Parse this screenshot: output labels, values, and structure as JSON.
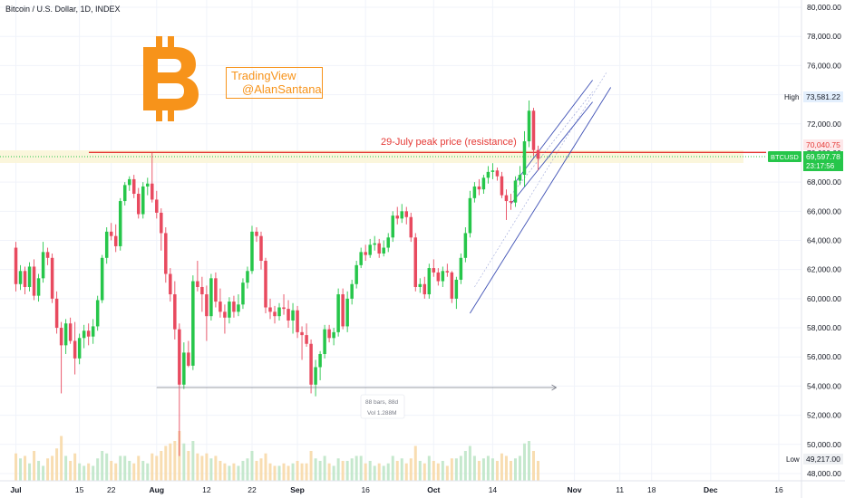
{
  "header": {
    "title": "Bitcoin / U.S. Dollar, 1D, INDEX"
  },
  "watermark": {
    "line1": "TradingView",
    "line2": "@AlanSantana"
  },
  "logo": {
    "icon": "bitcoin-logo-icon",
    "color": "#f7931a"
  },
  "annotations": {
    "resistance_label": "29-July peak price (resistance)",
    "resistance_color": "#e53935",
    "range_bars": "88 bars, 88d",
    "range_vol": "Vol 1.288M"
  },
  "price_scale": {
    "high_label": "High",
    "high_value": "73,581.22",
    "low_label": "Low",
    "low_value": "49,217.00",
    "resistance_value": "70,040.75",
    "symbol": "BTCUSD",
    "last_value": "69,597.78",
    "countdown": "23:17:56"
  },
  "colors": {
    "up": "#22ab94",
    "up_bright": "#26c64a",
    "down": "#e84a5f",
    "channel": "#3f51b5",
    "volume": "#f5d98f"
  },
  "chart_data": {
    "type": "candlestick",
    "title": "Bitcoin / U.S. Dollar, 1D, INDEX",
    "ylim": [
      47500,
      80500
    ],
    "y_ticks": [
      "48,000.00",
      "50,000.00",
      "52,000.00",
      "54,000.00",
      "56,000.00",
      "58,000.00",
      "60,000.00",
      "62,000.00",
      "64,000.00",
      "66,000.00",
      "68,000.00",
      "70,000.00",
      "72,000.00",
      "74,000.00",
      "76,000.00",
      "78,000.00",
      "80,000.00"
    ],
    "x_ticks": [
      {
        "label": "Jul",
        "day": 0
      },
      {
        "label": "15",
        "day": 14
      },
      {
        "label": "22",
        "day": 21
      },
      {
        "label": "Aug",
        "day": 31
      },
      {
        "label": "12",
        "day": 42
      },
      {
        "label": "22",
        "day": 52
      },
      {
        "label": "Sep",
        "day": 62
      },
      {
        "label": "16",
        "day": 77
      },
      {
        "label": "Oct",
        "day": 92
      },
      {
        "label": "14",
        "day": 105
      },
      {
        "label": "Nov",
        "day": 123
      },
      {
        "label": "11",
        "day": 133
      },
      {
        "label": "18",
        "day": 140
      },
      {
        "label": "Dec",
        "day": 153
      },
      {
        "label": "16",
        "day": 168
      }
    ],
    "x_domain": [
      -3.5,
      173
    ],
    "resistance": 70040.75,
    "channel_lines": [
      {
        "x1": 110,
        "y1": 68000,
        "x2": 127,
        "y2": 75000
      },
      {
        "x1": 109,
        "y1": 66500,
        "x2": 127,
        "y2": 73500
      },
      {
        "x1": 100,
        "y1": 59000,
        "x2": 131,
        "y2": 74500
      }
    ],
    "range_measure": {
      "x1": 31,
      "x2": 119,
      "y": 53900
    },
    "candles": [
      {
        "o": 63500,
        "h": 63900,
        "l": 60500,
        "c": 61000
      },
      {
        "o": 61000,
        "h": 62300,
        "l": 60600,
        "c": 61900
      },
      {
        "o": 61900,
        "h": 62200,
        "l": 60300,
        "c": 60800
      },
      {
        "o": 60800,
        "h": 62500,
        "l": 60500,
        "c": 62200
      },
      {
        "o": 62200,
        "h": 62700,
        "l": 59900,
        "c": 60200
      },
      {
        "o": 60200,
        "h": 61700,
        "l": 59800,
        "c": 61400
      },
      {
        "o": 61400,
        "h": 63900,
        "l": 61100,
        "c": 63200
      },
      {
        "o": 63200,
        "h": 63500,
        "l": 62300,
        "c": 62800
      },
      {
        "o": 62800,
        "h": 63100,
        "l": 59700,
        "c": 60000
      },
      {
        "o": 60000,
        "h": 60500,
        "l": 57600,
        "c": 58000
      },
      {
        "o": 58000,
        "h": 58400,
        "l": 53500,
        "c": 56800
      },
      {
        "o": 56800,
        "h": 58600,
        "l": 56200,
        "c": 58300
      },
      {
        "o": 58300,
        "h": 58700,
        "l": 56900,
        "c": 57100
      },
      {
        "o": 57100,
        "h": 58400,
        "l": 54800,
        "c": 55900
      },
      {
        "o": 55900,
        "h": 57600,
        "l": 55500,
        "c": 57300
      },
      {
        "o": 57300,
        "h": 58200,
        "l": 56600,
        "c": 57800
      },
      {
        "o": 57800,
        "h": 58300,
        "l": 56800,
        "c": 57400
      },
      {
        "o": 57400,
        "h": 58600,
        "l": 56900,
        "c": 58100
      },
      {
        "o": 58100,
        "h": 60200,
        "l": 57800,
        "c": 59900
      },
      {
        "o": 59900,
        "h": 63000,
        "l": 59700,
        "c": 62800
      },
      {
        "o": 62800,
        "h": 64900,
        "l": 62400,
        "c": 64600
      },
      {
        "o": 64600,
        "h": 65200,
        "l": 64000,
        "c": 64300
      },
      {
        "o": 64300,
        "h": 65100,
        "l": 63200,
        "c": 63600
      },
      {
        "o": 63600,
        "h": 66900,
        "l": 63300,
        "c": 66700
      },
      {
        "o": 66700,
        "h": 68000,
        "l": 66400,
        "c": 67800
      },
      {
        "o": 67800,
        "h": 68400,
        "l": 67400,
        "c": 68200
      },
      {
        "o": 68200,
        "h": 68500,
        "l": 66900,
        "c": 67200
      },
      {
        "o": 67200,
        "h": 67600,
        "l": 65500,
        "c": 65800
      },
      {
        "o": 65800,
        "h": 68000,
        "l": 65500,
        "c": 67700
      },
      {
        "o": 67700,
        "h": 68300,
        "l": 67100,
        "c": 67900
      },
      {
        "o": 67900,
        "h": 70000,
        "l": 66600,
        "c": 66800
      },
      {
        "o": 66800,
        "h": 67400,
        "l": 65500,
        "c": 65900
      },
      {
        "o": 65900,
        "h": 66200,
        "l": 63300,
        "c": 64500
      },
      {
        "o": 64500,
        "h": 64900,
        "l": 61100,
        "c": 61700
      },
      {
        "o": 61700,
        "h": 62100,
        "l": 59800,
        "c": 60300
      },
      {
        "o": 60300,
        "h": 61200,
        "l": 57200,
        "c": 57900
      },
      {
        "o": 57900,
        "h": 58300,
        "l": 49200,
        "c": 54100
      },
      {
        "o": 54100,
        "h": 57000,
        "l": 53800,
        "c": 56300
      },
      {
        "o": 56300,
        "h": 57100,
        "l": 55300,
        "c": 55400
      },
      {
        "o": 55400,
        "h": 61600,
        "l": 55100,
        "c": 61200
      },
      {
        "o": 61200,
        "h": 62600,
        "l": 60500,
        "c": 60800
      },
      {
        "o": 60800,
        "h": 61500,
        "l": 59100,
        "c": 60300
      },
      {
        "o": 60300,
        "h": 60900,
        "l": 57100,
        "c": 58800
      },
      {
        "o": 58800,
        "h": 61700,
        "l": 58500,
        "c": 61400
      },
      {
        "o": 61400,
        "h": 61800,
        "l": 59400,
        "c": 59800
      },
      {
        "o": 59800,
        "h": 60700,
        "l": 58700,
        "c": 59100
      },
      {
        "o": 59100,
        "h": 59600,
        "l": 57600,
        "c": 58700
      },
      {
        "o": 58700,
        "h": 60100,
        "l": 58300,
        "c": 59800
      },
      {
        "o": 59800,
        "h": 60200,
        "l": 58700,
        "c": 59100
      },
      {
        "o": 59100,
        "h": 60300,
        "l": 58800,
        "c": 59600
      },
      {
        "o": 59600,
        "h": 61400,
        "l": 59300,
        "c": 61100
      },
      {
        "o": 61100,
        "h": 62200,
        "l": 60700,
        "c": 61900
      },
      {
        "o": 61900,
        "h": 65000,
        "l": 61700,
        "c": 64600
      },
      {
        "o": 64600,
        "h": 64900,
        "l": 63900,
        "c": 64300
      },
      {
        "o": 64300,
        "h": 64600,
        "l": 62000,
        "c": 62600
      },
      {
        "o": 62600,
        "h": 62800,
        "l": 59000,
        "c": 59400
      },
      {
        "o": 59400,
        "h": 60000,
        "l": 58600,
        "c": 59100
      },
      {
        "o": 59100,
        "h": 59500,
        "l": 58300,
        "c": 58800
      },
      {
        "o": 58800,
        "h": 59700,
        "l": 58500,
        "c": 59400
      },
      {
        "o": 59400,
        "h": 60300,
        "l": 58900,
        "c": 59300
      },
      {
        "o": 59300,
        "h": 59900,
        "l": 58000,
        "c": 58500
      },
      {
        "o": 58500,
        "h": 59700,
        "l": 57600,
        "c": 59200
      },
      {
        "o": 59200,
        "h": 59500,
        "l": 57300,
        "c": 57700
      },
      {
        "o": 57700,
        "h": 58100,
        "l": 55800,
        "c": 57500
      },
      {
        "o": 57500,
        "h": 58300,
        "l": 56700,
        "c": 56900
      },
      {
        "o": 56900,
        "h": 57200,
        "l": 53500,
        "c": 54100
      },
      {
        "o": 54100,
        "h": 55800,
        "l": 53300,
        "c": 55300
      },
      {
        "o": 55300,
        "h": 56400,
        "l": 54400,
        "c": 56200
      },
      {
        "o": 56200,
        "h": 58200,
        "l": 55900,
        "c": 57900
      },
      {
        "o": 57900,
        "h": 58200,
        "l": 57000,
        "c": 57300
      },
      {
        "o": 57300,
        "h": 58000,
        "l": 56800,
        "c": 57700
      },
      {
        "o": 57700,
        "h": 60700,
        "l": 57400,
        "c": 60300
      },
      {
        "o": 60300,
        "h": 60700,
        "l": 57900,
        "c": 58100
      },
      {
        "o": 58100,
        "h": 60500,
        "l": 57700,
        "c": 60000
      },
      {
        "o": 60000,
        "h": 61300,
        "l": 59600,
        "c": 61000
      },
      {
        "o": 61000,
        "h": 62600,
        "l": 60700,
        "c": 62300
      },
      {
        "o": 62300,
        "h": 63500,
        "l": 62100,
        "c": 63200
      },
      {
        "o": 63200,
        "h": 63700,
        "l": 62600,
        "c": 63000
      },
      {
        "o": 63000,
        "h": 64100,
        "l": 62800,
        "c": 63700
      },
      {
        "o": 63700,
        "h": 64300,
        "l": 63300,
        "c": 63800
      },
      {
        "o": 63800,
        "h": 64100,
        "l": 62800,
        "c": 63100
      },
      {
        "o": 63100,
        "h": 64000,
        "l": 62900,
        "c": 63500
      },
      {
        "o": 63500,
        "h": 64500,
        "l": 63200,
        "c": 64200
      },
      {
        "o": 64200,
        "h": 66000,
        "l": 63900,
        "c": 65700
      },
      {
        "o": 65700,
        "h": 66300,
        "l": 65100,
        "c": 65500
      },
      {
        "o": 65500,
        "h": 66500,
        "l": 65200,
        "c": 66000
      },
      {
        "o": 66000,
        "h": 66300,
        "l": 65100,
        "c": 65600
      },
      {
        "o": 65600,
        "h": 65900,
        "l": 63900,
        "c": 64200
      },
      {
        "o": 64200,
        "h": 64500,
        "l": 60500,
        "c": 60800
      },
      {
        "o": 60800,
        "h": 61400,
        "l": 60400,
        "c": 61000
      },
      {
        "o": 61000,
        "h": 61500,
        "l": 60000,
        "c": 60300
      },
      {
        "o": 60300,
        "h": 62400,
        "l": 60000,
        "c": 62100
      },
      {
        "o": 62100,
        "h": 62700,
        "l": 61500,
        "c": 61800
      },
      {
        "o": 61800,
        "h": 62100,
        "l": 60900,
        "c": 61200
      },
      {
        "o": 61200,
        "h": 62200,
        "l": 60800,
        "c": 61900
      },
      {
        "o": 61900,
        "h": 62400,
        "l": 61500,
        "c": 61800
      },
      {
        "o": 61800,
        "h": 61900,
        "l": 59700,
        "c": 60000
      },
      {
        "o": 60000,
        "h": 61500,
        "l": 59300,
        "c": 61300
      },
      {
        "o": 61300,
        "h": 63100,
        "l": 61000,
        "c": 62800
      },
      {
        "o": 62800,
        "h": 64900,
        "l": 62500,
        "c": 64500
      },
      {
        "o": 64500,
        "h": 67400,
        "l": 64200,
        "c": 66900
      },
      {
        "o": 66900,
        "h": 68000,
        "l": 66600,
        "c": 67700
      },
      {
        "o": 67700,
        "h": 68200,
        "l": 67100,
        "c": 67500
      },
      {
        "o": 67500,
        "h": 68500,
        "l": 67200,
        "c": 68300
      },
      {
        "o": 68300,
        "h": 69100,
        "l": 67900,
        "c": 68700
      },
      {
        "o": 68700,
        "h": 69300,
        "l": 68200,
        "c": 68800
      },
      {
        "o": 68800,
        "h": 69000,
        "l": 68100,
        "c": 68400
      },
      {
        "o": 68400,
        "h": 68700,
        "l": 66900,
        "c": 67100
      },
      {
        "o": 67100,
        "h": 67500,
        "l": 65400,
        "c": 66700
      },
      {
        "o": 66700,
        "h": 67200,
        "l": 66100,
        "c": 66600
      },
      {
        "o": 66600,
        "h": 68400,
        "l": 66300,
        "c": 68100
      },
      {
        "o": 68100,
        "h": 69100,
        "l": 67800,
        "c": 68500
      },
      {
        "o": 68500,
        "h": 71500,
        "l": 67700,
        "c": 70800
      },
      {
        "o": 70800,
        "h": 73600,
        "l": 70400,
        "c": 72900
      },
      {
        "o": 72900,
        "h": 73100,
        "l": 69800,
        "c": 70200
      },
      {
        "o": 70200,
        "h": 70500,
        "l": 68800,
        "c": 69600
      }
    ],
    "volume": [
      0.55,
      0.45,
      0.5,
      0.35,
      0.6,
      0.4,
      0.3,
      0.45,
      0.5,
      0.65,
      0.9,
      0.5,
      0.4,
      0.55,
      0.35,
      0.3,
      0.35,
      0.3,
      0.45,
      0.6,
      0.55,
      0.4,
      0.35,
      0.5,
      0.5,
      0.4,
      0.35,
      0.5,
      0.4,
      0.35,
      0.55,
      0.5,
      0.6,
      0.7,
      0.75,
      0.8,
      1.0,
      0.75,
      0.6,
      0.8,
      0.55,
      0.5,
      0.55,
      0.45,
      0.5,
      0.4,
      0.35,
      0.3,
      0.35,
      0.3,
      0.4,
      0.45,
      0.6,
      0.4,
      0.45,
      0.55,
      0.35,
      0.3,
      0.3,
      0.35,
      0.3,
      0.35,
      0.4,
      0.35,
      0.35,
      0.6,
      0.45,
      0.4,
      0.5,
      0.35,
      0.3,
      0.45,
      0.4,
      0.4,
      0.45,
      0.5,
      0.5,
      0.35,
      0.4,
      0.3,
      0.35,
      0.3,
      0.35,
      0.5,
      0.4,
      0.45,
      0.35,
      0.45,
      0.7,
      0.4,
      0.35,
      0.5,
      0.4,
      0.35,
      0.4,
      0.3,
      0.45,
      0.45,
      0.5,
      0.6,
      0.7,
      0.5,
      0.4,
      0.45,
      0.5,
      0.45,
      0.4,
      0.55,
      0.5,
      0.4,
      0.45,
      0.5,
      0.75,
      0.8,
      0.6,
      0.4
    ]
  }
}
